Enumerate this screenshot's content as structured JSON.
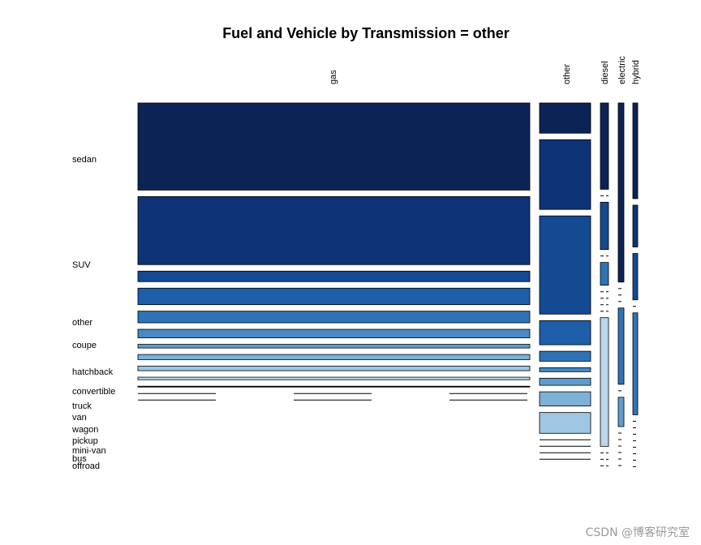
{
  "chart_data": {
    "type": "mosaic",
    "title": "Fuel and Vehicle by Transmission = other",
    "fuel_types": [
      "gas",
      "other",
      "diesel",
      "electric",
      "hybrid"
    ],
    "vehicle_types": [
      "sedan",
      "SUV",
      "other",
      "coupe",
      "hatchback",
      "convertible",
      "truck",
      "van",
      "wagon",
      "pickup",
      "mini-van",
      "bus",
      "offroad"
    ],
    "colors": {
      "sedan": "#0c2356",
      "SUV": "#0e3377",
      "other": "#134a92",
      "coupe": "#1f5ea8",
      "hatchback": "#2f73b6",
      "convertible": "#4689c3",
      "truck": "#5f9ccd",
      "van": "#7eb1d8",
      "wagon": "#9fc6e2",
      "pickup": "#bcd6ea",
      "mini-van": "#1a1a1a",
      "bus": "#1a1a1a",
      "offroad": "#1a1a1a"
    },
    "proportions": {
      "gas": [
        0.306,
        0.239,
        0.037,
        0.058,
        0.041,
        0.03,
        0.013,
        0.018,
        0.016,
        0.009,
        0.003,
        0.0,
        0.0
      ],
      "other": [
        0.106,
        0.245,
        0.345,
        0.085,
        0.035,
        0.014,
        0.025,
        0.05,
        0.073,
        0,
        0,
        0,
        0
      ],
      "diesel": [
        0.303,
        0,
        0.166,
        0,
        0.08,
        0,
        0,
        0,
        0,
        0.452,
        0,
        0,
        0
      ],
      "electric": [
        0.629,
        0,
        0,
        0,
        0.268,
        0,
        0.103,
        0,
        0,
        0,
        0,
        0,
        0
      ],
      "hybrid": [
        0.336,
        0.147,
        0.163,
        0,
        0.358,
        0,
        0,
        0,
        0,
        0,
        0,
        0,
        0
      ]
    }
  },
  "watermark": "CSDN @博客研究室"
}
